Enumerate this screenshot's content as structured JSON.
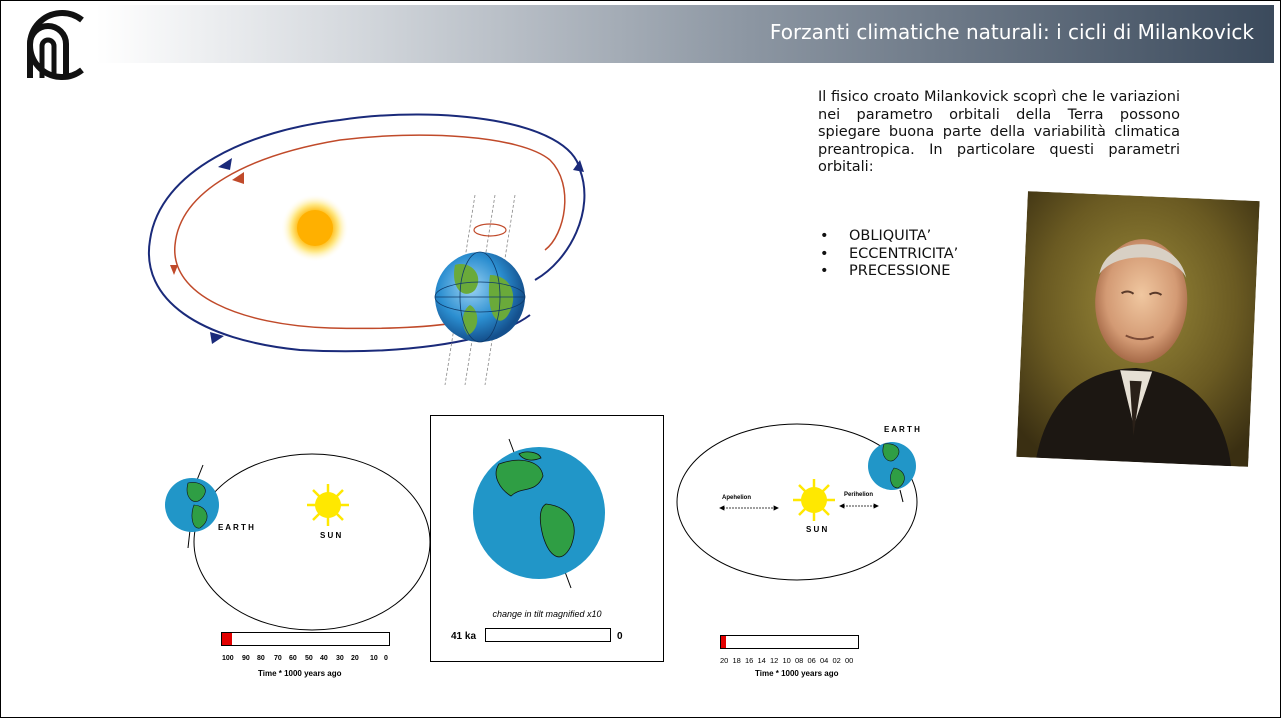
{
  "header": {
    "title": "Forzanti climatiche naturali: i cicli di Milankovick"
  },
  "intro": "Il fisico croato Milankovick scoprì che le variazioni nei parametro orbitali della Terra possono spiegare buona parte della variabilità climatica preantropica. In particolare questi parametri orbitali:",
  "parameters": [
    "OBLIQUITA’",
    "ECCENTRICITA’",
    "PRECESSIONE"
  ],
  "eccentricity_panel": {
    "earth_label": "E A R T H",
    "sun_label": "S U N",
    "timeline_ticks": [
      "100",
      "90",
      "80",
      "70",
      "60",
      "50",
      "40",
      "30",
      "20",
      "10",
      "0"
    ],
    "timeline_caption": "Time * 1000 years ago",
    "progress": 0.06
  },
  "obliquity_panel": {
    "caption": "change in tilt magnified x10",
    "left_label": "41 ka",
    "right_label": "0",
    "progress": 0.0
  },
  "precession_panel": {
    "earth_label": "E A R T H",
    "sun_label": "S U N",
    "aphelion_label": "Apehelion",
    "perihelion_label": "Perihelion",
    "timeline_ticks": [
      "20",
      "18",
      "16",
      "14",
      "12",
      "10",
      "08",
      "06",
      "04",
      "02",
      "00"
    ],
    "timeline_caption": "Time * 1000 years ago",
    "progress": 0.04
  },
  "colors": {
    "bar_fill": "#e20000",
    "header_dark": "#3b4a5c",
    "sun": "#ffe800",
    "ocean": "#2196c8",
    "land": "#2f9e44"
  }
}
